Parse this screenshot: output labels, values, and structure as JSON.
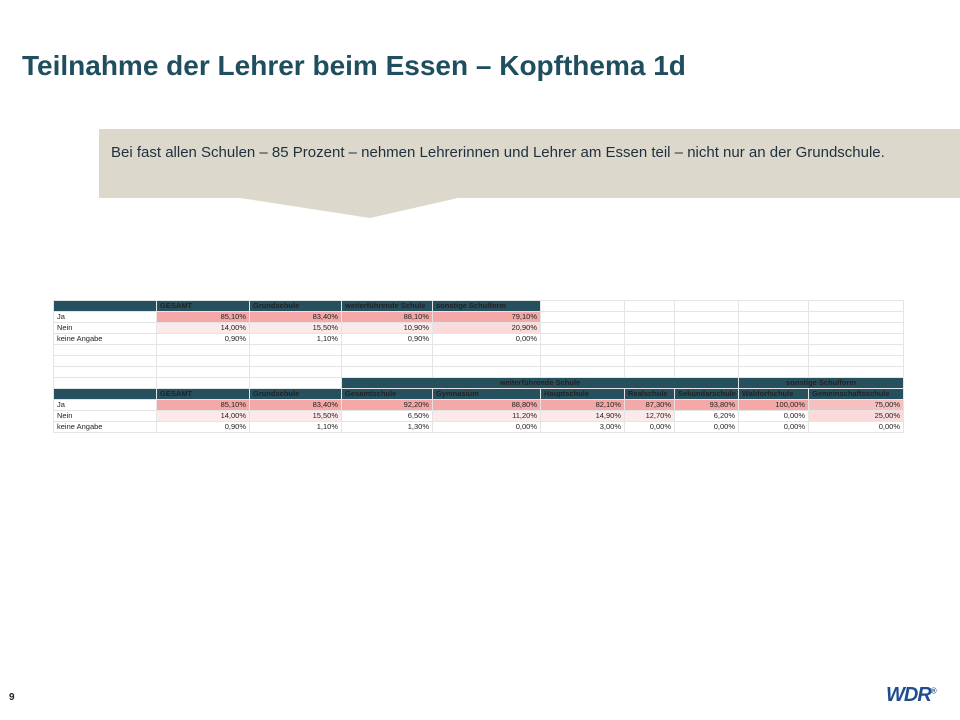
{
  "title": "Teilnahme der Lehrer beim Essen – Kopfthema 1d",
  "callout": "Bei fast allen Schulen – 85 Prozent – nehmen Lehrerinnen und Lehrer am Essen teil – nicht nur an der Grundschule.",
  "table1": {
    "headers": [
      "",
      "GESAMT",
      "Grundschule",
      "weiterführende Schule",
      "sonstige Schulform"
    ],
    "rows": [
      {
        "label": "Ja",
        "values": [
          "85,10%",
          "83,40%",
          "88,10%",
          "79,10%"
        ]
      },
      {
        "label": "Nein",
        "values": [
          "14,00%",
          "15,50%",
          "10,90%",
          "20,90%"
        ]
      },
      {
        "label": "keine Angabe",
        "values": [
          "0,90%",
          "1,10%",
          "0,90%",
          "0,00%"
        ]
      }
    ]
  },
  "table2": {
    "group_headers": [
      "weiterführende Schule",
      "sonstige Schulform"
    ],
    "headers": [
      "",
      "GESAMT",
      "Grundschule",
      "Gesamtschule",
      "Gymnasium",
      "Hauptschule",
      "Realschule",
      "Sekundarschule",
      "Waldorfschule",
      "Gemeinschaftsschule"
    ],
    "rows": [
      {
        "label": "Ja",
        "values": [
          "85,10%",
          "83,40%",
          "92,20%",
          "88,80%",
          "82,10%",
          "87,30%",
          "93,80%",
          "100,00%",
          "75,00%"
        ]
      },
      {
        "label": "Nein",
        "values": [
          "14,00%",
          "15,50%",
          "6,50%",
          "11,20%",
          "14,90%",
          "12,70%",
          "6,20%",
          "0,00%",
          "25,00%"
        ]
      },
      {
        "label": "keine Angabe",
        "values": [
          "0,90%",
          "1,10%",
          "1,30%",
          "0,00%",
          "3,00%",
          "0,00%",
          "0,00%",
          "0,00%",
          "0,00%"
        ]
      }
    ]
  },
  "page_number": "9",
  "logo": {
    "text": "WDR",
    "mark": "®"
  }
}
